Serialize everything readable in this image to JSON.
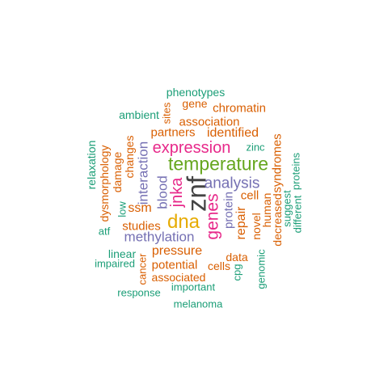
{
  "palette": {
    "green": "#1b9e77",
    "orange": "#d95f02",
    "purple": "#7570b3",
    "magenta": "#e7298a",
    "lime": "#66a61e",
    "gold": "#e6ab02",
    "gray": "#444444"
  },
  "words": [
    {
      "text": "phenotypes",
      "color": "green"
    },
    {
      "text": "gene",
      "color": "orange"
    },
    {
      "text": "sites",
      "color": "orange"
    },
    {
      "text": "ambient",
      "color": "green"
    },
    {
      "text": "chromatin",
      "color": "orange"
    },
    {
      "text": "association",
      "color": "orange"
    },
    {
      "text": "partners",
      "color": "orange"
    },
    {
      "text": "identified",
      "color": "orange"
    },
    {
      "text": "relaxation",
      "color": "green"
    },
    {
      "text": "dysmorphology",
      "color": "orange"
    },
    {
      "text": "damage",
      "color": "orange"
    },
    {
      "text": "changes",
      "color": "orange"
    },
    {
      "text": "interaction",
      "color": "purple"
    },
    {
      "text": "expression",
      "color": "magenta"
    },
    {
      "text": "zinc",
      "color": "green"
    },
    {
      "text": "syndromes",
      "color": "orange"
    },
    {
      "text": "proteins",
      "color": "green"
    },
    {
      "text": "temperature",
      "color": "lime"
    },
    {
      "text": "blood",
      "color": "purple"
    },
    {
      "text": "jnka",
      "color": "magenta"
    },
    {
      "text": "znf",
      "color": "gray"
    },
    {
      "text": "analysis",
      "color": "purple"
    },
    {
      "text": "cell",
      "color": "orange"
    },
    {
      "text": "human",
      "color": "orange"
    },
    {
      "text": "decreased",
      "color": "orange"
    },
    {
      "text": "suggest",
      "color": "green"
    },
    {
      "text": "different",
      "color": "green"
    },
    {
      "text": "low",
      "color": "green"
    },
    {
      "text": "ssm",
      "color": "orange"
    },
    {
      "text": "dna",
      "color": "gold"
    },
    {
      "text": "genes",
      "color": "magenta"
    },
    {
      "text": "protein",
      "color": "purple"
    },
    {
      "text": "repair",
      "color": "orange"
    },
    {
      "text": "novel",
      "color": "orange"
    },
    {
      "text": "atf",
      "color": "green"
    },
    {
      "text": "studies",
      "color": "orange"
    },
    {
      "text": "methylation",
      "color": "purple"
    },
    {
      "text": "pressure",
      "color": "orange"
    },
    {
      "text": "linear",
      "color": "green"
    },
    {
      "text": "impaired",
      "color": "green"
    },
    {
      "text": "cancer",
      "color": "orange"
    },
    {
      "text": "potential",
      "color": "orange"
    },
    {
      "text": "data",
      "color": "orange"
    },
    {
      "text": "cells",
      "color": "orange"
    },
    {
      "text": "cpg",
      "color": "green"
    },
    {
      "text": "genomic",
      "color": "green"
    },
    {
      "text": "associated",
      "color": "orange"
    },
    {
      "text": "response",
      "color": "green"
    },
    {
      "text": "important",
      "color": "green"
    },
    {
      "text": "melanoma",
      "color": "green"
    }
  ]
}
